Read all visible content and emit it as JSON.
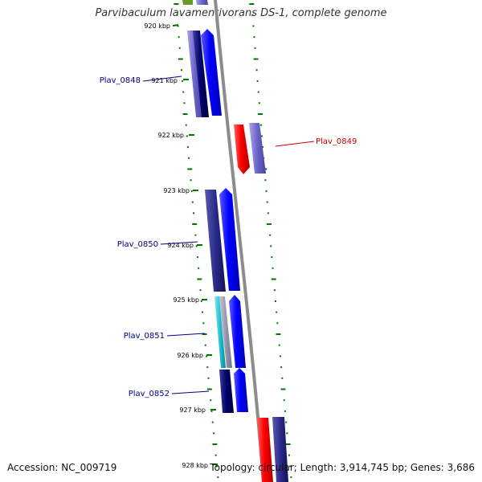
{
  "title": "Parvibaculum lavamentivorans DS-1, complete genome",
  "footer": {
    "accession": "Accession: NC_009719",
    "summary": "Topology: circular; Length: 3,914,745 bp; Genes: 3,686"
  },
  "scale_labels": [
    "920 kbp",
    "921 kbp",
    "922 kbp",
    "923 kbp",
    "924 kbp",
    "925 kbp",
    "926 kbp",
    "927 kbp",
    "928 kbp"
  ],
  "gene_labels": [
    {
      "text": "Plav_0848",
      "color": "#00008b"
    },
    {
      "text": "Plav_0849",
      "color": "#cc0000"
    },
    {
      "text": "Plav_0850",
      "color": "#00008b"
    },
    {
      "text": "Plav_0851",
      "color": "#00008b"
    },
    {
      "text": "Plav_0852",
      "color": "#00008b"
    }
  ],
  "colors": {
    "backbone": "#8c8c8c",
    "forward": "#0000ff",
    "reverse": "#ff0000",
    "dark_gene": "#2a2a8a",
    "light_gene": "#6a63c8",
    "cyan_gene": "#22c0d0",
    "tick": "#007700"
  }
}
